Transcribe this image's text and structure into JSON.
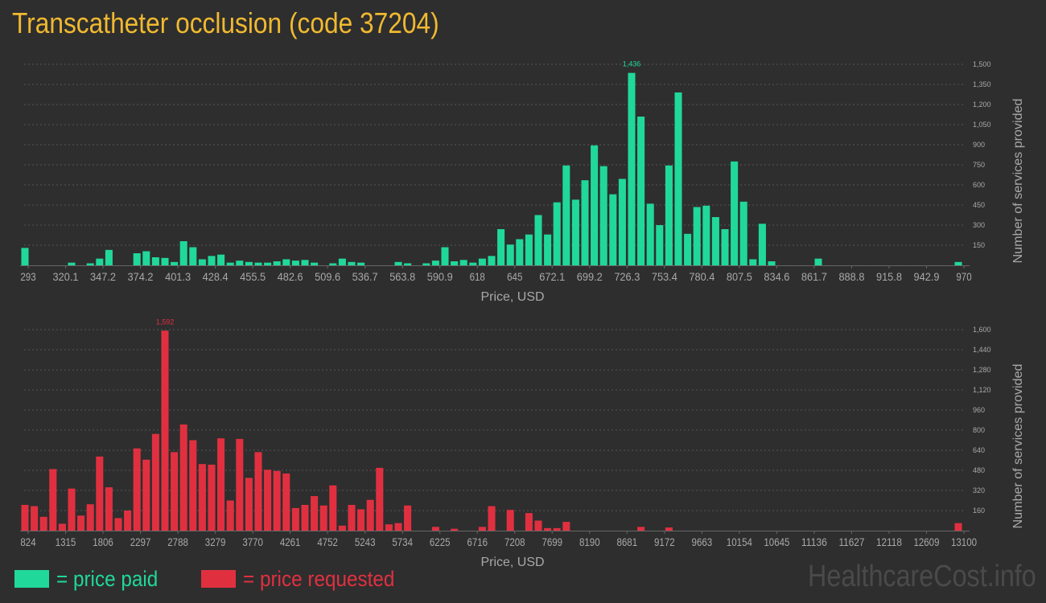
{
  "page": {
    "title": "Transcatheter occlusion (code 37204)",
    "watermark": "HealthcareCost.info"
  },
  "legend": {
    "paid_label": "= price paid",
    "requested_label": "= price requested"
  },
  "colors": {
    "background": "#2e2e2e",
    "title": "#f0b930",
    "paid": "#20d89a",
    "requested": "#e03040",
    "axis_text": "#a8a8a8",
    "grid": "#555555"
  },
  "chart_data": [
    {
      "type": "bar",
      "name": "price-paid",
      "xlabel": "Price, USD",
      "ylabel": "Number of services provided",
      "ylim": [
        0,
        1500
      ],
      "yticks": [
        150,
        300,
        450,
        600,
        750,
        900,
        1050,
        1200,
        1350,
        1500
      ],
      "ytick_labels": [
        "150",
        "300",
        "450",
        "600",
        "750",
        "900",
        "1,050",
        "1,200",
        "1,350",
        "1,500"
      ],
      "xtick_labels": [
        "293",
        "320.1",
        "347.2",
        "374.2",
        "401.3",
        "428.4",
        "455.5",
        "482.6",
        "509.6",
        "536.7",
        "563.8",
        "590.9",
        "618",
        "645",
        "672.1",
        "699.2",
        "726.3",
        "753.4",
        "780.4",
        "807.5",
        "834.6",
        "861.7",
        "888.8",
        "915.8",
        "942.9",
        "970"
      ],
      "peak_label": "1,436",
      "color": "#20d89a",
      "values": [
        130,
        0,
        0,
        0,
        0,
        20,
        0,
        15,
        50,
        115,
        0,
        0,
        90,
        105,
        60,
        55,
        25,
        180,
        135,
        45,
        70,
        80,
        20,
        35,
        25,
        20,
        20,
        30,
        45,
        35,
        40,
        20,
        0,
        15,
        50,
        25,
        20,
        0,
        0,
        0,
        25,
        15,
        0,
        15,
        35,
        135,
        30,
        40,
        20,
        50,
        70,
        270,
        155,
        195,
        230,
        375,
        230,
        470,
        745,
        490,
        635,
        895,
        740,
        530,
        645,
        1436,
        1110,
        460,
        300,
        745,
        1290,
        235,
        435,
        445,
        360,
        270,
        775,
        475,
        45,
        310,
        30,
        0,
        0,
        0,
        0,
        50,
        0,
        0,
        0,
        0,
        0,
        0,
        0,
        0,
        0,
        0,
        0,
        0,
        0,
        0,
        25
      ]
    },
    {
      "type": "bar",
      "name": "price-requested",
      "xlabel": "Price, USD",
      "ylabel": "Number of services provided",
      "ylim": [
        0,
        1600
      ],
      "yticks": [
        160,
        320,
        480,
        640,
        800,
        960,
        1120,
        1280,
        1440,
        1600
      ],
      "ytick_labels": [
        "160",
        "320",
        "480",
        "640",
        "800",
        "960",
        "1,120",
        "1,280",
        "1,440",
        "1,600"
      ],
      "xtick_labels": [
        "824",
        "1315",
        "1806",
        "2297",
        "2788",
        "3279",
        "3770",
        "4261",
        "4752",
        "5243",
        "5734",
        "6225",
        "6716",
        "7208",
        "7699",
        "8190",
        "8681",
        "9172",
        "9663",
        "10154",
        "10645",
        "11136",
        "11627",
        "12118",
        "12609",
        "13100"
      ],
      "peak_label": "1,592",
      "color": "#e03040",
      "values": [
        205,
        195,
        110,
        490,
        55,
        335,
        120,
        210,
        590,
        345,
        100,
        160,
        655,
        565,
        770,
        1592,
        625,
        845,
        720,
        530,
        525,
        735,
        240,
        730,
        420,
        625,
        485,
        475,
        455,
        180,
        205,
        275,
        200,
        360,
        40,
        205,
        170,
        245,
        500,
        50,
        60,
        200,
        0,
        0,
        30,
        0,
        15,
        0,
        0,
        30,
        195,
        0,
        165,
        0,
        140,
        80,
        20,
        20,
        70,
        0,
        0,
        0,
        0,
        0,
        0,
        0,
        30,
        0,
        0,
        25,
        0,
        0,
        0,
        0,
        0,
        0,
        0,
        0,
        0,
        0,
        0,
        0,
        0,
        0,
        0,
        0,
        0,
        0,
        0,
        0,
        0,
        0,
        0,
        0,
        0,
        0,
        0,
        0,
        0,
        0,
        60
      ]
    }
  ]
}
